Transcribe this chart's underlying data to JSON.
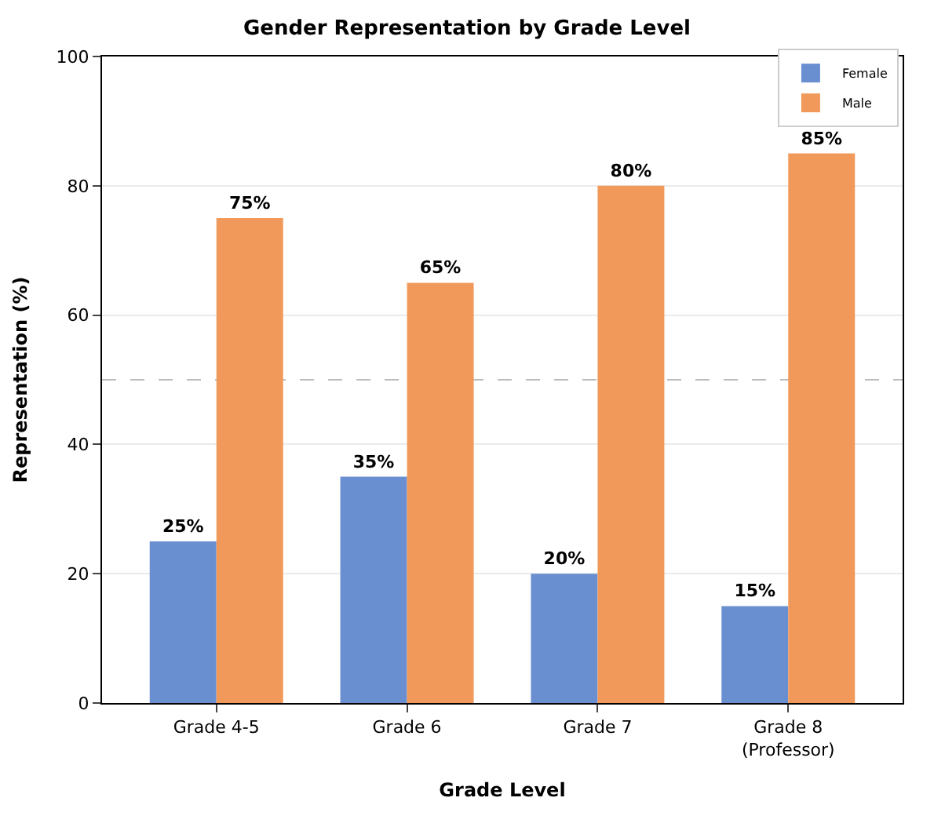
{
  "chart_data": {
    "type": "bar",
    "title": "Gender Representation by Grade Level",
    "xlabel": "Grade Level",
    "ylabel": "Representation (%)",
    "categories": [
      "Grade 4-5",
      "Grade 6",
      "Grade 7",
      "Grade 8\n(Professor)"
    ],
    "series": [
      {
        "name": "Female",
        "color": "#6a8fd0",
        "values": [
          25,
          35,
          20,
          15
        ],
        "value_labels": [
          "25%",
          "35%",
          "20%",
          "15%"
        ]
      },
      {
        "name": "Male",
        "color": "#f0995a",
        "values": [
          75,
          65,
          80,
          85
        ],
        "value_labels": [
          "75%",
          "65%",
          "80%",
          "85%"
        ]
      }
    ],
    "ylim": [
      0,
      100
    ],
    "yticks": [
      0,
      20,
      40,
      60,
      80,
      100
    ],
    "grid": "y",
    "legend": "top right",
    "ref_lines": [
      {
        "axis": "y",
        "value": 50,
        "label": null,
        "color": "#bbbbbb",
        "line_style": "dashed"
      }
    ]
  }
}
